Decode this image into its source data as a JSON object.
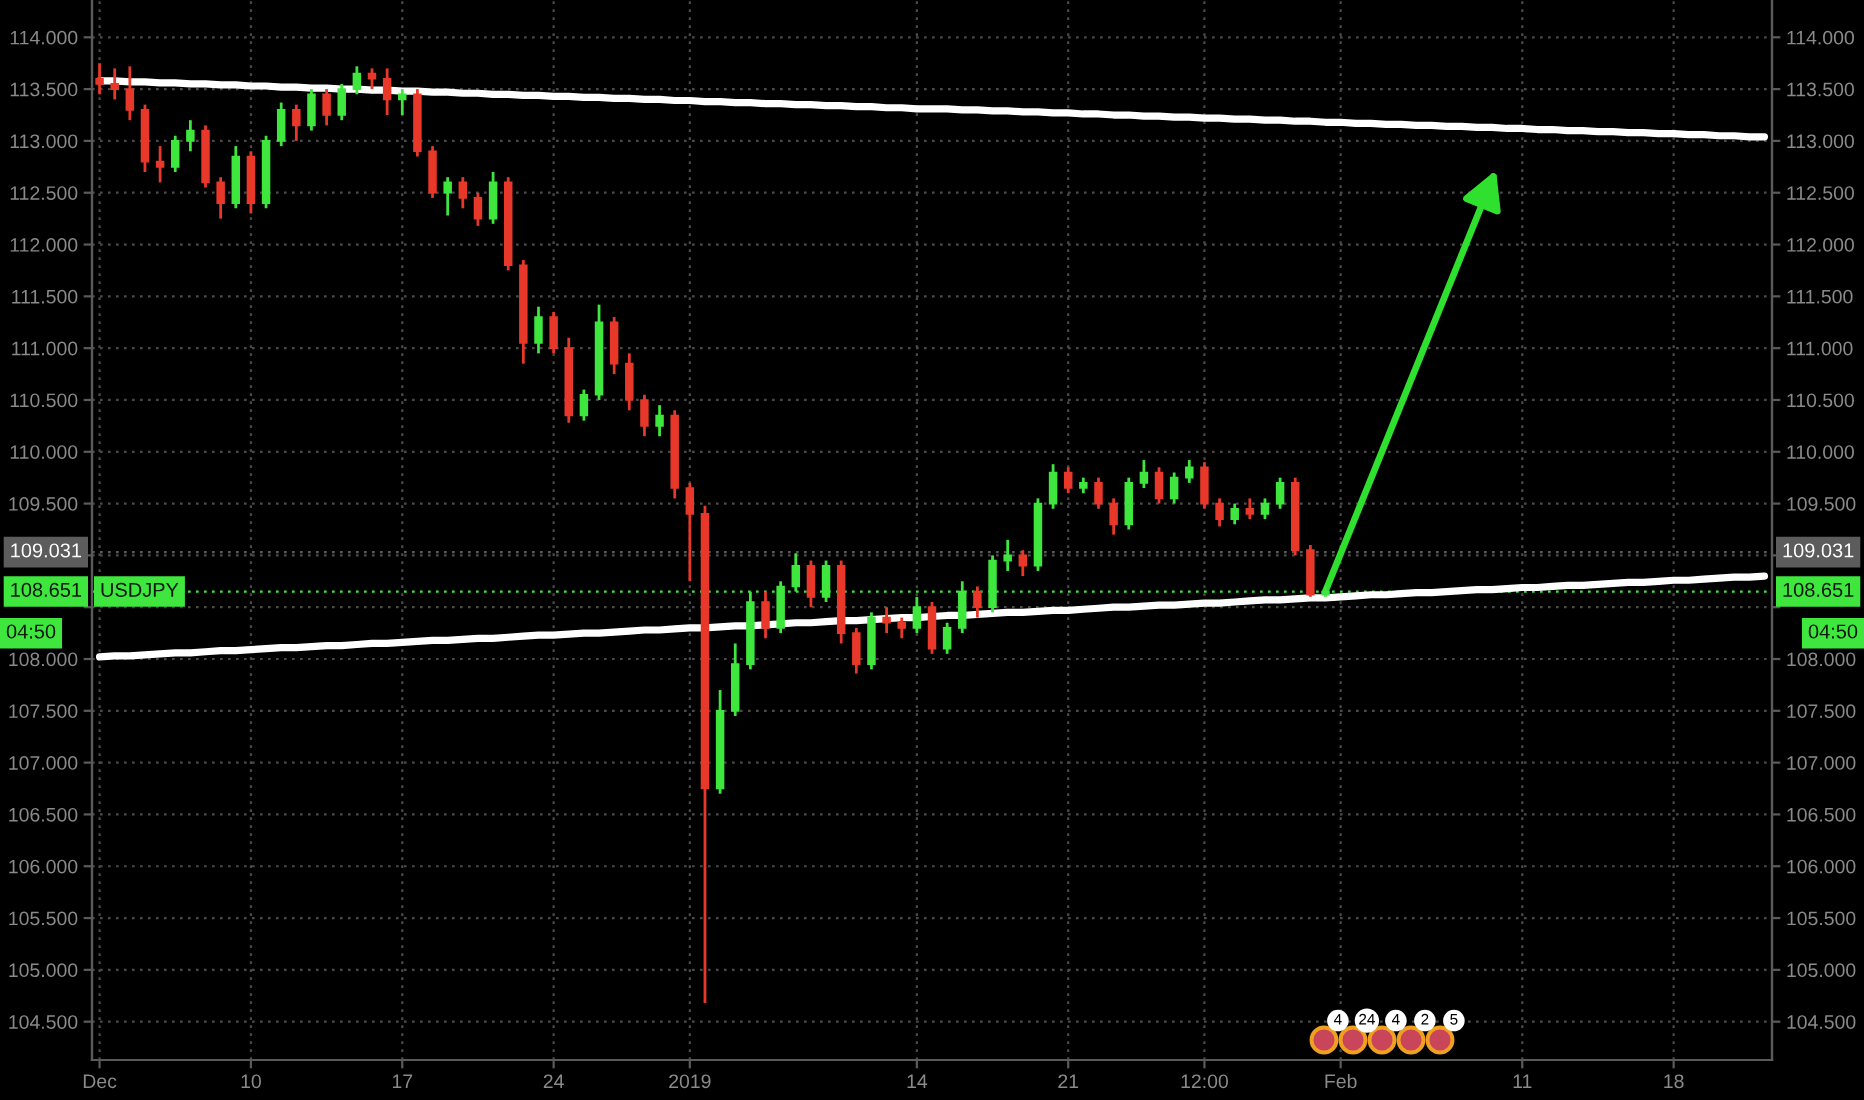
{
  "chart_data": {
    "type": "candlestick",
    "categories": [
      "Dec",
      null,
      null,
      null,
      null,
      null,
      null,
      null,
      null,
      null,
      "10",
      null,
      null,
      null,
      null,
      null,
      null,
      null,
      null,
      null,
      "17",
      null,
      null,
      null,
      null,
      null,
      null,
      null,
      null,
      null,
      "24",
      null,
      null,
      null,
      null,
      null,
      null,
      null,
      null,
      "2019",
      null,
      null,
      null,
      null,
      null,
      null,
      null,
      null,
      null,
      null,
      null,
      null,
      null,
      null,
      "14",
      null,
      null,
      null,
      null,
      null,
      null,
      null,
      null,
      null,
      "21",
      null,
      null,
      null,
      null,
      null,
      null,
      null,
      null,
      "12:00",
      null,
      null,
      null,
      null,
      null,
      null,
      null,
      null,
      "Feb",
      null,
      null,
      null,
      null,
      null,
      null,
      null,
      null,
      null,
      null,
      null,
      "11",
      null,
      null,
      null,
      null,
      null,
      null,
      null,
      null,
      null,
      "18",
      null,
      null,
      null,
      null,
      null,
      null
    ],
    "series": [
      {
        "name": "USDJPY",
        "ohlc": [
          [
            113.6,
            113.75,
            113.45,
            113.55
          ],
          [
            113.55,
            113.7,
            113.4,
            113.5
          ],
          [
            113.5,
            113.72,
            113.2,
            113.3
          ],
          [
            113.3,
            113.35,
            112.7,
            112.8
          ],
          [
            112.8,
            112.95,
            112.6,
            112.75
          ],
          [
            112.75,
            113.05,
            112.7,
            113.0
          ],
          [
            113.0,
            113.2,
            112.9,
            113.1
          ],
          [
            113.1,
            113.15,
            112.55,
            112.6
          ],
          [
            112.6,
            112.65,
            112.25,
            112.4
          ],
          [
            112.4,
            112.95,
            112.35,
            112.85
          ],
          [
            112.85,
            112.9,
            112.3,
            112.4
          ],
          [
            112.4,
            113.05,
            112.35,
            113.0
          ],
          [
            113.0,
            113.37,
            112.95,
            113.3
          ],
          [
            113.3,
            113.35,
            113.0,
            113.15
          ],
          [
            113.15,
            113.5,
            113.1,
            113.45
          ],
          [
            113.45,
            113.5,
            113.15,
            113.25
          ],
          [
            113.25,
            113.55,
            113.2,
            113.5
          ],
          [
            113.5,
            113.72,
            113.45,
            113.65
          ],
          [
            113.65,
            113.7,
            113.5,
            113.6
          ],
          [
            113.6,
            113.7,
            113.25,
            113.4
          ],
          [
            113.4,
            113.5,
            113.25,
            113.45
          ],
          [
            113.45,
            113.5,
            112.85,
            112.9
          ],
          [
            112.9,
            112.95,
            112.45,
            112.5
          ],
          [
            112.5,
            112.65,
            112.28,
            112.6
          ],
          [
            112.6,
            112.65,
            112.35,
            112.45
          ],
          [
            112.45,
            112.5,
            112.18,
            112.25
          ],
          [
            112.25,
            112.7,
            112.2,
            112.6
          ],
          [
            112.6,
            112.65,
            111.75,
            111.8
          ],
          [
            111.8,
            111.85,
            110.85,
            111.05
          ],
          [
            111.05,
            111.4,
            110.95,
            111.3
          ],
          [
            111.3,
            111.35,
            110.95,
            111.0
          ],
          [
            111.0,
            111.1,
            110.28,
            110.35
          ],
          [
            110.35,
            110.6,
            110.3,
            110.55
          ],
          [
            110.55,
            111.42,
            110.5,
            111.25
          ],
          [
            111.25,
            111.3,
            110.75,
            110.85
          ],
          [
            110.85,
            110.95,
            110.4,
            110.5
          ],
          [
            110.5,
            110.55,
            110.15,
            110.25
          ],
          [
            110.25,
            110.45,
            110.15,
            110.35
          ],
          [
            110.35,
            110.4,
            109.55,
            109.65
          ],
          [
            109.65,
            109.7,
            108.75,
            109.4
          ],
          [
            109.4,
            109.48,
            104.68,
            106.75
          ],
          [
            106.75,
            107.7,
            106.7,
            107.5
          ],
          [
            107.5,
            108.15,
            107.45,
            107.95
          ],
          [
            107.95,
            108.65,
            107.9,
            108.55
          ],
          [
            108.55,
            108.65,
            108.2,
            108.3
          ],
          [
            108.3,
            108.75,
            108.25,
            108.7
          ],
          [
            108.7,
            109.02,
            108.65,
            108.9
          ],
          [
            108.9,
            108.95,
            108.5,
            108.6
          ],
          [
            108.6,
            108.95,
            108.55,
            108.9
          ],
          [
            108.9,
            108.95,
            108.15,
            108.25
          ],
          [
            108.25,
            108.3,
            107.86,
            107.95
          ],
          [
            107.95,
            108.45,
            107.9,
            108.4
          ],
          [
            108.4,
            108.5,
            108.25,
            108.35
          ],
          [
            108.35,
            108.4,
            108.2,
            108.3
          ],
          [
            108.3,
            108.6,
            108.25,
            108.5
          ],
          [
            108.5,
            108.55,
            108.05,
            108.1
          ],
          [
            108.1,
            108.35,
            108.05,
            108.3
          ],
          [
            108.3,
            108.75,
            108.25,
            108.65
          ],
          [
            108.65,
            108.7,
            108.4,
            108.5
          ],
          [
            108.5,
            109.0,
            108.45,
            108.95
          ],
          [
            108.95,
            109.15,
            108.85,
            109.0
          ],
          [
            109.0,
            109.05,
            108.8,
            108.9
          ],
          [
            108.9,
            109.55,
            108.85,
            109.5
          ],
          [
            109.5,
            109.88,
            109.45,
            109.8
          ],
          [
            109.8,
            109.85,
            109.6,
            109.65
          ],
          [
            109.65,
            109.75,
            109.6,
            109.7
          ],
          [
            109.7,
            109.75,
            109.45,
            109.5
          ],
          [
            109.5,
            109.55,
            109.2,
            109.3
          ],
          [
            109.3,
            109.75,
            109.25,
            109.7
          ],
          [
            109.7,
            109.92,
            109.65,
            109.8
          ],
          [
            109.8,
            109.85,
            109.5,
            109.55
          ],
          [
            109.55,
            109.8,
            109.5,
            109.75
          ],
          [
            109.75,
            109.92,
            109.7,
            109.85
          ],
          [
            109.85,
            109.9,
            109.45,
            109.5
          ],
          [
            109.5,
            109.55,
            109.28,
            109.35
          ],
          [
            109.35,
            109.5,
            109.3,
            109.45
          ],
          [
            109.45,
            109.55,
            109.35,
            109.4
          ],
          [
            109.4,
            109.55,
            109.35,
            109.5
          ],
          [
            109.5,
            109.75,
            109.45,
            109.7
          ],
          [
            109.7,
            109.75,
            109.0,
            109.05
          ],
          [
            109.05,
            109.1,
            108.6,
            108.62
          ],
          [
            108.62,
            108.7,
            108.6,
            108.651
          ],
          null,
          null,
          null,
          null,
          null,
          null,
          null,
          null,
          null,
          null,
          null,
          null,
          null,
          null,
          null,
          null,
          null,
          null,
          null,
          null,
          null,
          null,
          null,
          null,
          null,
          null,
          null,
          null,
          null
        ],
        "colors": [
          "#e8382a",
          "#e8382a",
          "#e8382a",
          "#e8382a",
          "#e8382a",
          "#3ee63e",
          "#3ee63e",
          "#e8382a",
          "#e8382a",
          "#3ee63e",
          "#e8382a",
          "#3ee63e",
          "#3ee63e",
          "#e8382a",
          "#3ee63e",
          "#e8382a",
          "#3ee63e",
          "#3ee63e",
          "#e8382a",
          "#e8382a",
          "#3ee63e",
          "#e8382a",
          "#e8382a",
          "#3ee63e",
          "#e8382a",
          "#e8382a",
          "#3ee63e",
          "#e8382a",
          "#e8382a",
          "#3ee63e",
          "#e8382a",
          "#e8382a",
          "#3ee63e",
          "#3ee63e",
          "#e8382a",
          "#e8382a",
          "#e8382a",
          "#3ee63e",
          "#e8382a",
          "#e8382a",
          "#e8382a",
          "#3ee63e",
          "#3ee63e",
          "#3ee63e",
          "#e8382a",
          "#3ee63e",
          "#3ee63e",
          "#e8382a",
          "#3ee63e",
          "#e8382a",
          "#e8382a",
          "#3ee63e",
          "#e8382a",
          "#e8382a",
          "#3ee63e",
          "#e8382a",
          "#3ee63e",
          "#3ee63e",
          "#e8382a",
          "#3ee63e",
          "#3ee63e",
          "#e8382a",
          "#3ee63e",
          "#3ee63e",
          "#e8382a",
          "#3ee63e",
          "#e8382a",
          "#e8382a",
          "#3ee63e",
          "#3ee63e",
          "#e8382a",
          "#3ee63e",
          "#3ee63e",
          "#e8382a",
          "#e8382a",
          "#3ee63e",
          "#e8382a",
          "#3ee63e",
          "#3ee63e",
          "#e8382a",
          "#e8382a",
          "#3ee63e",
          null,
          null,
          null,
          null,
          null,
          null,
          null,
          null,
          null,
          null,
          null,
          null,
          null,
          null,
          null,
          null,
          null,
          null,
          null,
          null,
          null,
          null,
          null,
          null,
          null,
          null,
          null,
          null,
          null
        ]
      },
      {
        "type": "line",
        "color": "#ffffff",
        "values": [
          113.58,
          113.58,
          113.57,
          113.57,
          113.56,
          113.56,
          113.55,
          113.55,
          113.54,
          113.54,
          113.53,
          113.53,
          113.52,
          113.52,
          113.51,
          113.51,
          113.5,
          113.5,
          113.49,
          113.49,
          113.48,
          113.48,
          113.47,
          113.47,
          113.46,
          113.46,
          113.45,
          113.45,
          113.44,
          113.44,
          113.43,
          113.43,
          113.42,
          113.42,
          113.41,
          113.41,
          113.4,
          113.4,
          113.39,
          113.39,
          113.38,
          113.38,
          113.37,
          113.37,
          113.36,
          113.36,
          113.35,
          113.35,
          113.34,
          113.34,
          113.33,
          113.33,
          113.32,
          113.32,
          113.31,
          113.31,
          113.31,
          113.3,
          113.3,
          113.29,
          113.29,
          113.28,
          113.28,
          113.27,
          113.27,
          113.26,
          113.26,
          113.25,
          113.25,
          113.24,
          113.24,
          113.23,
          113.23,
          113.22,
          113.22,
          113.21,
          113.21,
          113.2,
          113.2,
          113.19,
          113.19,
          113.18,
          113.18,
          113.17,
          113.17,
          113.16,
          113.16,
          113.15,
          113.15,
          113.14,
          113.14,
          113.13,
          113.13,
          113.12,
          113.12,
          113.11,
          113.11,
          113.1,
          113.1,
          113.09,
          113.09,
          113.08,
          113.08,
          113.07,
          113.07,
          113.06,
          113.06,
          113.05,
          113.05,
          113.04,
          113.04
        ]
      },
      {
        "type": "line",
        "color": "#ffffff",
        "values": [
          108.02,
          108.03,
          108.03,
          108.04,
          108.05,
          108.06,
          108.06,
          108.07,
          108.08,
          108.08,
          108.09,
          108.1,
          108.11,
          108.11,
          108.12,
          108.13,
          108.13,
          108.14,
          108.15,
          108.15,
          108.16,
          108.17,
          108.18,
          108.18,
          108.19,
          108.2,
          108.2,
          108.21,
          108.22,
          108.23,
          108.23,
          108.24,
          108.25,
          108.25,
          108.26,
          108.27,
          108.28,
          108.28,
          108.29,
          108.3,
          108.3,
          108.31,
          108.32,
          108.32,
          108.33,
          108.34,
          108.35,
          108.35,
          108.36,
          108.37,
          108.37,
          108.38,
          108.39,
          108.4,
          108.4,
          108.41,
          108.42,
          108.42,
          108.43,
          108.44,
          108.45,
          108.45,
          108.46,
          108.47,
          108.47,
          108.48,
          108.49,
          108.5,
          108.5,
          108.51,
          108.52,
          108.52,
          108.53,
          108.54,
          108.54,
          108.55,
          108.56,
          108.57,
          108.57,
          108.58,
          108.59,
          108.59,
          108.6,
          108.61,
          108.62,
          108.62,
          108.63,
          108.64,
          108.64,
          108.65,
          108.66,
          108.67,
          108.67,
          108.68,
          108.69,
          108.69,
          108.7,
          108.71,
          108.71,
          108.72,
          108.73,
          108.74,
          108.74,
          108.75,
          108.76,
          108.76,
          108.77,
          108.78,
          108.79,
          108.79,
          108.8
        ]
      }
    ],
    "ylim": [
      104.13,
      114.36
    ],
    "yticks": [
      {
        "value": 104.5,
        "label": "104.500"
      },
      {
        "value": 105,
        "label": "105.000"
      },
      {
        "value": 105.5,
        "label": "105.500"
      },
      {
        "value": 106,
        "label": "106.000"
      },
      {
        "value": 106.5,
        "label": "106.500"
      },
      {
        "value": 107,
        "label": "107.000"
      },
      {
        "value": 107.5,
        "label": "107.500"
      },
      {
        "value": 108,
        "label": "108.000"
      },
      {
        "value": 108.5,
        "label": null
      },
      {
        "value": 109,
        "label": null
      },
      {
        "value": 109.5,
        "label": "109.500"
      },
      {
        "value": 110,
        "label": "110.000"
      },
      {
        "value": 110.5,
        "label": "110.500"
      },
      {
        "value": 111,
        "label": "111.000"
      },
      {
        "value": 111.5,
        "label": "111.500"
      },
      {
        "value": 112,
        "label": "112.000"
      },
      {
        "value": 112.5,
        "label": "112.500"
      },
      {
        "value": 113,
        "label": "113.000"
      },
      {
        "value": 113.5,
        "label": "113.500"
      },
      {
        "value": 114,
        "label": "114.000"
      }
    ],
    "y2lim": [
      104.13,
      114.36
    ],
    "y2ticks": [
      {
        "value": 104.5,
        "label": "104.500"
      },
      {
        "value": 105,
        "label": "105.000"
      },
      {
        "value": 105.5,
        "label": "105.500"
      },
      {
        "value": 106,
        "label": "106.000"
      },
      {
        "value": 106.5,
        "label": "106.500"
      },
      {
        "value": 107,
        "label": "107.000"
      },
      {
        "value": 107.5,
        "label": "107.500"
      },
      {
        "value": 108,
        "label": "108.000"
      },
      {
        "value": 108.5,
        "label": null
      },
      {
        "value": 109,
        "label": null
      },
      {
        "value": 109.5,
        "label": "109.500"
      },
      {
        "value": 110,
        "label": "110.000"
      },
      {
        "value": 110.5,
        "label": "110.500"
      },
      {
        "value": 111,
        "label": "111.000"
      },
      {
        "value": 111.5,
        "label": "111.500"
      },
      {
        "value": 112,
        "label": "112.000"
      },
      {
        "value": 112.5,
        "label": "112.500"
      },
      {
        "value": 113,
        "label": "113.000"
      },
      {
        "value": 113.5,
        "label": "113.500"
      },
      {
        "value": 114,
        "label": "114.000"
      }
    ],
    "grid": true,
    "ref_lines": [
      {
        "axis": "y",
        "value": 109.031,
        "label": "109.031",
        "color": "#5c5c5c",
        "line_style": "dotted"
      },
      {
        "axis": "y",
        "value": 108.651,
        "label": "108.651",
        "color": "#3ee63e",
        "line_style": "dotted"
      }
    ],
    "annotations": [
      "04:50",
      "4",
      "24",
      "4",
      "2",
      "5"
    ]
  }
}
